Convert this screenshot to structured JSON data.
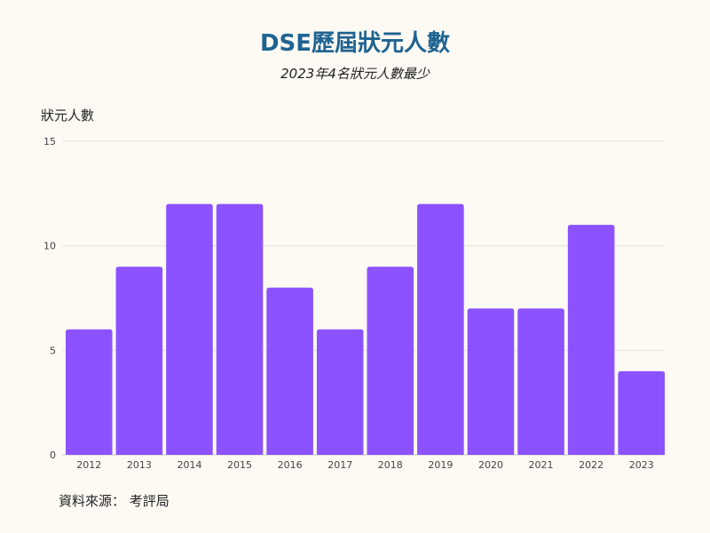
{
  "chart_data": {
    "type": "bar",
    "title": "DSE歷屆狀元人數",
    "subtitle": "2023年4名狀元人數最少",
    "ylabel": "狀元人數",
    "xlabel": "",
    "categories": [
      "2012",
      "2013",
      "2014",
      "2015",
      "2016",
      "2017",
      "2018",
      "2019",
      "2020",
      "2021",
      "2022",
      "2023"
    ],
    "values": [
      6,
      9,
      12,
      12,
      8,
      6,
      9,
      12,
      7,
      7,
      11,
      4
    ],
    "ylim": [
      0,
      15
    ],
    "yticks": [
      0,
      5,
      10,
      15
    ],
    "bar_color": "#8c52ff",
    "grid": true
  },
  "source": "資料來源： 考評局"
}
